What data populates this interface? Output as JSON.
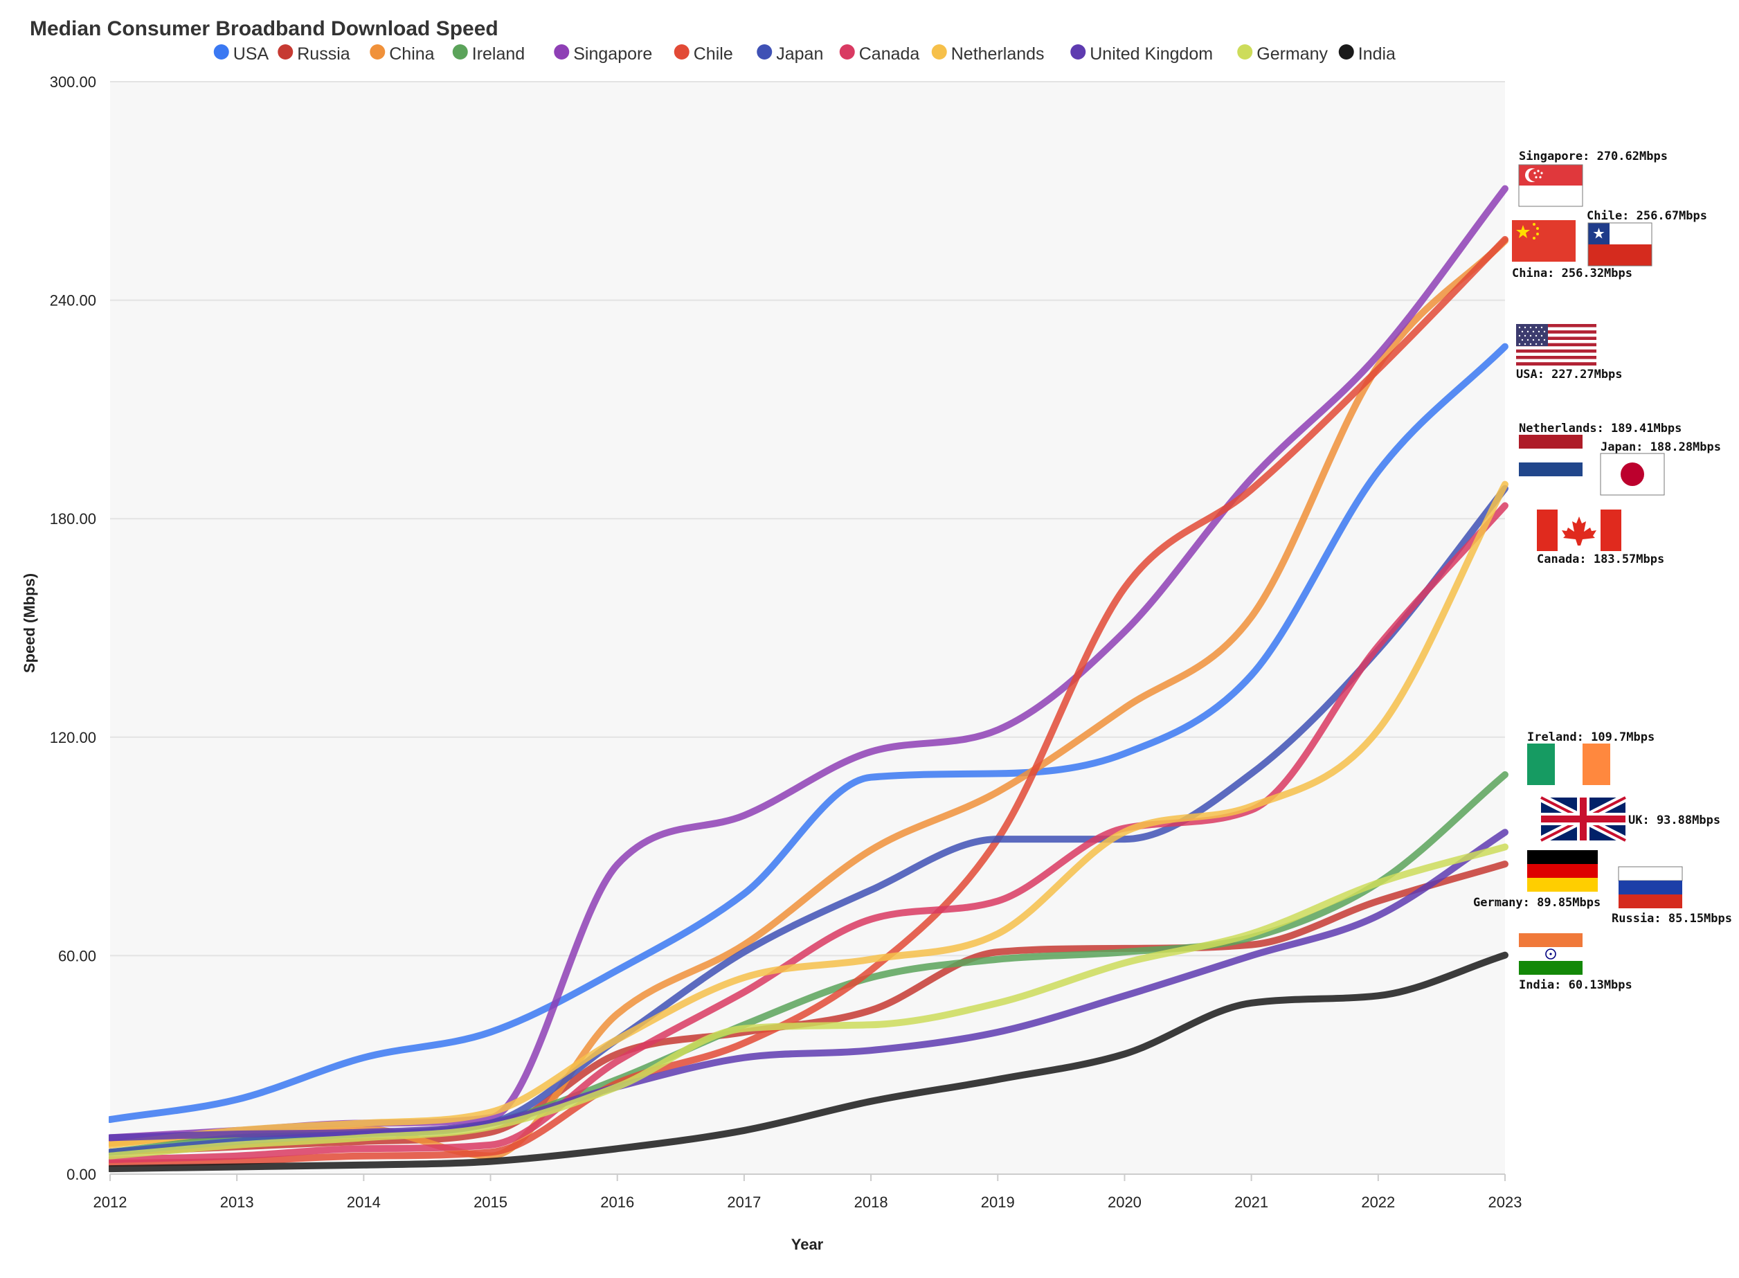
{
  "chart_data": {
    "type": "line",
    "title": "Median Consumer Broadband Download Speed",
    "xlabel": "Year",
    "ylabel": "Speed (Mbps)",
    "x": [
      2012,
      2013,
      2014,
      2015,
      2016,
      2017,
      2018,
      2019,
      2020,
      2021,
      2022,
      2023
    ],
    "x_tick_labels": [
      "2012",
      "2013",
      "2014",
      "2015",
      "2016",
      "2017",
      "2018",
      "2019",
      "2020",
      "2021",
      "2022",
      "2023"
    ],
    "ylim": [
      0,
      300
    ],
    "y_ticks": [
      0,
      60,
      120,
      180,
      240,
      300
    ],
    "y_tick_labels": [
      "0.00",
      "60.00",
      "120.00",
      "180.00",
      "240.00",
      "300.00"
    ],
    "grid": true,
    "legend_position": "top",
    "series": [
      {
        "name": "USA",
        "color": "#3a78f2",
        "values": [
          15,
          20.5,
          32,
          39,
          56,
          77,
          109,
          110,
          115.5,
          137,
          193,
          227.27
        ],
        "end_label": "USA: 227.27Mbps",
        "flag": "usa"
      },
      {
        "name": "Russia",
        "color": "#c63a32",
        "values": [
          6,
          7.5,
          9,
          11.5,
          33,
          39,
          45,
          61,
          62,
          63,
          75,
          85.15
        ],
        "end_label": "Russia: 85.15Mbps",
        "flag": "russia"
      },
      {
        "name": "China",
        "color": "#f0913a",
        "values": [
          8.5,
          11,
          12.5,
          5,
          44,
          63,
          89,
          105,
          128,
          153,
          222,
          256.32
        ],
        "end_label": "China: 256.32Mbps",
        "flag": "china"
      },
      {
        "name": "Ireland",
        "color": "#5ba35a",
        "values": [
          6,
          10,
          11,
          14,
          26,
          41,
          54,
          59,
          61,
          65,
          80,
          109.7
        ],
        "end_label": "Ireland: 109.7Mbps",
        "flag": "ireland"
      },
      {
        "name": "Singapore",
        "color": "#8e3fb5",
        "values": [
          10,
          12,
          14,
          15.5,
          85,
          98.5,
          116,
          122,
          149,
          191,
          225,
          270.62
        ],
        "end_label": "Singapore: 270.62Mbps",
        "flag": "singapore"
      },
      {
        "name": "Chile",
        "color": "#e24a36",
        "values": [
          3,
          3.5,
          5,
          6,
          25,
          36,
          56,
          92,
          161,
          188,
          221,
          256.67
        ],
        "end_label": "Chile: 256.67Mbps",
        "flag": "chile"
      },
      {
        "name": "Japan",
        "color": "#3f51b5",
        "values": [
          6,
          9,
          11,
          14,
          37,
          61,
          78,
          92,
          92,
          110,
          144,
          188.28
        ],
        "end_label": "Japan: 188.28Mbps",
        "flag": "japan"
      },
      {
        "name": "Canada",
        "color": "#d93a62",
        "values": [
          4,
          5,
          7,
          8,
          31,
          50,
          70,
          75,
          95,
          100,
          145,
          183.57
        ],
        "end_label": "Canada: 183.57Mbps",
        "flag": "canada"
      },
      {
        "name": "Netherlands",
        "color": "#f6c04a",
        "values": [
          8,
          12,
          14,
          17,
          37,
          54,
          59,
          66,
          94,
          101,
          122,
          189.41
        ],
        "end_label": "Netherlands: 189.41Mbps",
        "flag": "netherlands"
      },
      {
        "name": "United Kingdom",
        "color": "#5e3bb0",
        "values": [
          10,
          11,
          11.5,
          14,
          24,
          32,
          34,
          39,
          49,
          60,
          71,
          93.88
        ],
        "end_label": "UK: 93.88Mbps",
        "flag": "uk"
      },
      {
        "name": "Germany",
        "color": "#cddc5a",
        "values": [
          5,
          8,
          10,
          13,
          24,
          40,
          41,
          47,
          58,
          66,
          80,
          89.85
        ],
        "end_label": "Germany: 89.85Mbps",
        "flag": "germany"
      },
      {
        "name": "India",
        "color": "#1a1a1a",
        "values": [
          1.5,
          2,
          2.5,
          3.5,
          7,
          12,
          20,
          26,
          33,
          47,
          49,
          60.13
        ],
        "end_label": "India: 60.13Mbps",
        "flag": "india"
      }
    ]
  }
}
